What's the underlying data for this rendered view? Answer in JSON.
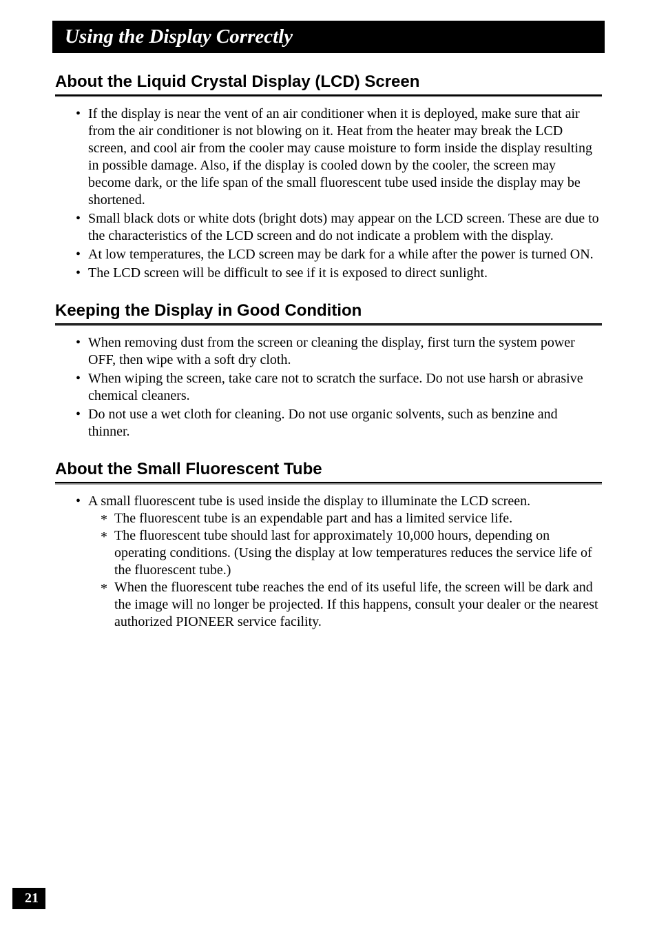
{
  "page_title": "Using the Display Correctly",
  "sections": [
    {
      "heading": "About the Liquid Crystal Display (LCD) Screen",
      "bullets": [
        "If the display is near the vent of an air conditioner when it is deployed, make sure that air from the air conditioner is not blowing on it. Heat from the heater may break the LCD screen, and cool air from the cooler may cause moisture to form inside the display resulting in possible damage. Also, if the display is cooled down by the cooler, the screen may become dark, or the life span of the small fluorescent tube used inside the display may be shortened.",
        "Small black dots or white dots (bright dots) may appear on the LCD screen. These are due to the characteristics of the LCD screen and do not indicate a problem with the display.",
        "At low temperatures, the LCD screen may be dark for a while after the power is turned ON.",
        "The LCD screen will be difficult to see if it is exposed to direct sunlight."
      ]
    },
    {
      "heading": "Keeping the Display in Good Condition",
      "bullets": [
        "When removing dust from the screen or cleaning the display, first turn the system power OFF, then wipe with a soft dry cloth.",
        "When wiping the screen, take care not to scratch the surface. Do not use harsh or abrasive chemical cleaners.",
        "Do not use a wet cloth for cleaning. Do not use organic solvents, such as benzine and thinner."
      ]
    },
    {
      "heading": "About the Small Fluorescent Tube",
      "bullets": [
        "A small fluorescent tube is used inside the display to illuminate the LCD screen."
      ],
      "sub_bullets": [
        "The fluorescent tube is an expendable part and has a limited service life.",
        "The fluorescent tube should last for approximately 10,000 hours, depending on operating conditions. (Using the display at low temperatures reduces the service life of the fluorescent tube.)",
        "When the fluorescent tube reaches the end of its useful life, the screen will be dark and the image will no longer be projected. If this happens, consult your dealer or the nearest authorized PIONEER service facility."
      ]
    }
  ],
  "page_number": "21",
  "colors": {
    "background": "#ffffff",
    "title_bar_bg": "#000000",
    "title_bar_text": "#ffffff",
    "heading_border_bottom": "#888888",
    "heading_border_line": "#000000",
    "body_text": "#000000",
    "page_number_bg": "#000000",
    "page_number_text": "#ffffff"
  },
  "typography": {
    "title_font": "Times New Roman italic bold",
    "title_size_pt": 22,
    "heading_font": "Arial bold condensed",
    "heading_size_pt": 18,
    "body_font": "Times New Roman",
    "body_size_pt": 15
  }
}
